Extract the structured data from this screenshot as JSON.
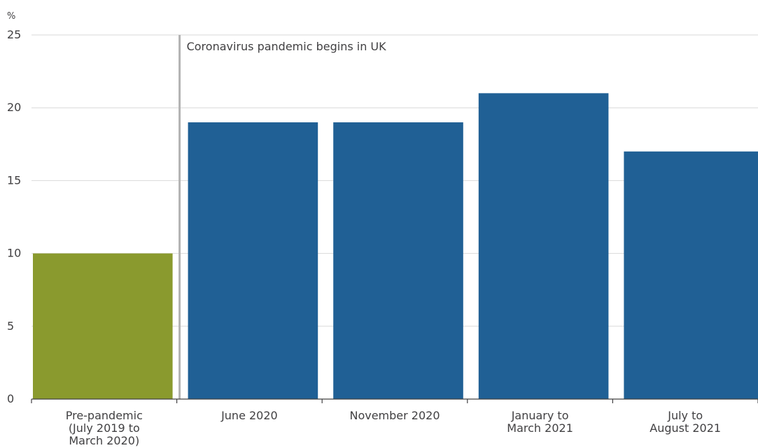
{
  "chart_data": {
    "type": "bar",
    "title": "",
    "xlabel": "",
    "ylabel": "%",
    "ylim": [
      0,
      25
    ],
    "yticks": [
      0,
      5,
      10,
      15,
      20,
      25
    ],
    "grid": true,
    "categories": [
      [
        "Pre-pandemic",
        "(July 2019 to",
        "March 2020)"
      ],
      [
        "June 2020"
      ],
      [
        "November 2020"
      ],
      [
        "January to",
        "March 2021"
      ],
      [
        "July to",
        "August 2021"
      ]
    ],
    "values": [
      10,
      19,
      19,
      21,
      17
    ],
    "colors": [
      "#8a9a2e",
      "#206095",
      "#206095",
      "#206095",
      "#206095"
    ],
    "annotation": {
      "label": "Coronavirus pandemic begins in UK",
      "position": "between category 1 and 2",
      "color": "#b3b3b3"
    }
  }
}
